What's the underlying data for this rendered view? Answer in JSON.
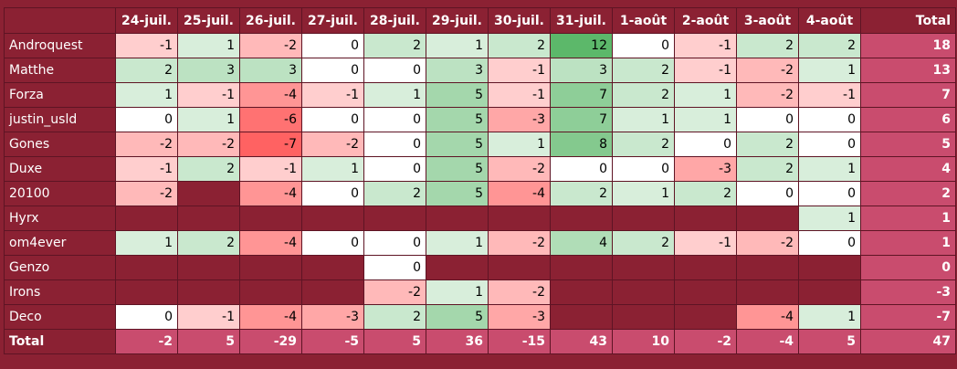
{
  "chart_data": {
    "type": "heatmap",
    "columns": [
      "24-juil.",
      "25-juil.",
      "26-juil.",
      "27-juil.",
      "28-juil.",
      "29-juil.",
      "30-juil.",
      "31-juil.",
      "1-août",
      "2-août",
      "3-août",
      "4-août"
    ],
    "total_label": "Total",
    "rows": [
      {
        "name": "Androquest",
        "values": [
          -1,
          1,
          -2,
          0,
          2,
          1,
          2,
          12,
          0,
          -1,
          2,
          2
        ],
        "total": 18
      },
      {
        "name": "Matthe",
        "values": [
          2,
          3,
          3,
          0,
          0,
          3,
          -1,
          3,
          2,
          -1,
          -2,
          1
        ],
        "total": 13
      },
      {
        "name": "Forza",
        "values": [
          1,
          -1,
          -4,
          -1,
          1,
          5,
          -1,
          7,
          2,
          1,
          -2,
          -1
        ],
        "total": 7
      },
      {
        "name": "justin_usld",
        "values": [
          0,
          1,
          -6,
          0,
          0,
          5,
          -3,
          7,
          1,
          1,
          0,
          0
        ],
        "total": 6
      },
      {
        "name": "Gones",
        "values": [
          -2,
          -2,
          -7,
          -2,
          0,
          5,
          1,
          8,
          2,
          0,
          2,
          0
        ],
        "total": 5
      },
      {
        "name": "Duxe",
        "values": [
          -1,
          2,
          -1,
          1,
          0,
          5,
          -2,
          0,
          0,
          -3,
          2,
          1
        ],
        "total": 4
      },
      {
        "name": "20100",
        "values": [
          -2,
          null,
          -4,
          0,
          2,
          5,
          -4,
          2,
          1,
          2,
          0,
          0
        ],
        "total": 2
      },
      {
        "name": "Hyrx",
        "values": [
          null,
          null,
          null,
          null,
          null,
          null,
          null,
          null,
          null,
          null,
          null,
          1
        ],
        "total": 1
      },
      {
        "name": "om4ever",
        "values": [
          1,
          2,
          -4,
          0,
          0,
          1,
          -2,
          4,
          2,
          -1,
          -2,
          0
        ],
        "total": 1
      },
      {
        "name": "Genzo",
        "values": [
          null,
          null,
          null,
          null,
          0,
          null,
          null,
          null,
          null,
          null,
          null,
          null
        ],
        "total": 0
      },
      {
        "name": "Irons",
        "values": [
          null,
          null,
          null,
          null,
          -2,
          1,
          -2,
          null,
          null,
          null,
          null,
          null
        ],
        "total": -3
      },
      {
        "name": "Deco",
        "values": [
          0,
          -1,
          -4,
          -3,
          2,
          5,
          -3,
          null,
          null,
          null,
          -4,
          1
        ],
        "total": -7
      }
    ],
    "totals_row": {
      "name": "Total",
      "values": [
        -2,
        5,
        -29,
        -5,
        5,
        36,
        -15,
        43,
        10,
        -2,
        -4,
        5
      ],
      "total": 47
    },
    "colors": {
      "background": "#8b2133",
      "total_cells": "#c94c6e",
      "positive_max": "#5cb86a",
      "negative_max": "#ff6262",
      "neutral": "#ffffff"
    }
  }
}
